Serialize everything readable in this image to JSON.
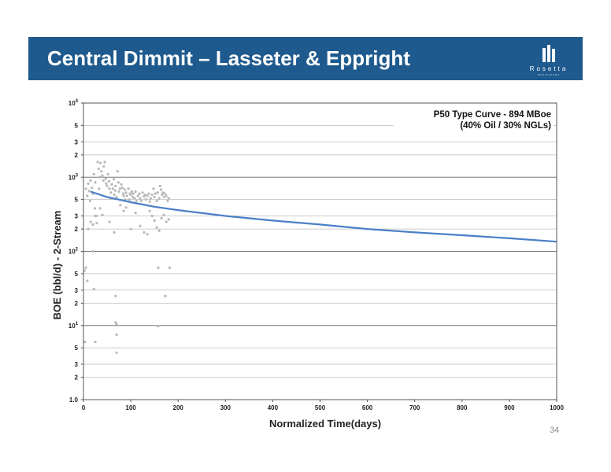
{
  "slide": {
    "title": "Central Dimmit – Lasseter & Eppright",
    "logo_text": "Rosetta",
    "logo_subtext": "RESOURCES",
    "page_number": "34",
    "colors": {
      "title_bar": "#1f5a8e",
      "curve": "#4a7fc8",
      "points": "#b8b8b8"
    }
  },
  "chart_data": {
    "type": "scatter",
    "xlabel": "Normalized Time(days)",
    "ylabel": "BOE (bbl/d) - 2-Stream",
    "xlim": [
      0,
      1000
    ],
    "ylim": [
      1,
      10000
    ],
    "yscale": "log",
    "grid": true,
    "x_ticks": [
      "0",
      "100",
      "200",
      "300",
      "400",
      "500",
      "600",
      "700",
      "800",
      "900",
      "1000"
    ],
    "y_ticks": [
      {
        "value": 10000,
        "base": "10",
        "exp": "4"
      },
      {
        "value": 5000,
        "label": "5"
      },
      {
        "value": 3000,
        "label": "3"
      },
      {
        "value": 2000,
        "label": "2"
      },
      {
        "value": 1000,
        "base": "10",
        "exp": "3"
      },
      {
        "value": 500,
        "label": "5"
      },
      {
        "value": 300,
        "label": "3"
      },
      {
        "value": 200,
        "label": "2"
      },
      {
        "value": 100,
        "base": "10",
        "exp": "2"
      },
      {
        "value": 50,
        "label": "5"
      },
      {
        "value": 30,
        "label": "3"
      },
      {
        "value": 20,
        "label": "2"
      },
      {
        "value": 10,
        "base": "10",
        "exp": "1"
      },
      {
        "value": 5,
        "label": "5"
      },
      {
        "value": 3,
        "label": "3"
      },
      {
        "value": 2,
        "label": "2"
      },
      {
        "value": 1,
        "label": "1.0"
      }
    ],
    "annotation": [
      "P50 Type Curve - 894 MBoe",
      "(40% Oil / 30% NGLs)"
    ],
    "series": [
      {
        "kind": "line",
        "x": [
          15,
          50,
          100,
          150,
          200,
          300,
          400,
          500,
          600,
          700,
          800,
          900,
          1000
        ],
        "y": [
          640,
          540,
          460,
          400,
          360,
          300,
          260,
          230,
          200,
          180,
          165,
          150,
          135
        ]
      },
      {
        "kind": "scatter",
        "points": [
          [
            5,
            700
          ],
          [
            8,
            560
          ],
          [
            10,
            820
          ],
          [
            12,
            650
          ],
          [
            14,
            480
          ],
          [
            15,
            900
          ],
          [
            18,
            720
          ],
          [
            20,
            600
          ],
          [
            22,
            1100
          ],
          [
            24,
            380
          ],
          [
            25,
            850
          ],
          [
            27,
            300
          ],
          [
            28,
            240
          ],
          [
            30,
            1600
          ],
          [
            32,
            1300
          ],
          [
            33,
            700
          ],
          [
            35,
            1000
          ],
          [
            36,
            1550
          ],
          [
            38,
            1200
          ],
          [
            40,
            1050
          ],
          [
            42,
            900
          ],
          [
            43,
            1400
          ],
          [
            45,
            1600
          ],
          [
            47,
            950
          ],
          [
            48,
            820
          ],
          [
            50,
            760
          ],
          [
            52,
            1100
          ],
          [
            54,
            880
          ],
          [
            55,
            700
          ],
          [
            57,
            520
          ],
          [
            58,
            620
          ],
          [
            60,
            800
          ],
          [
            62,
            700
          ],
          [
            64,
            940
          ],
          [
            65,
            580
          ],
          [
            67,
            660
          ],
          [
            68,
            760
          ],
          [
            70,
            540
          ],
          [
            72,
            1200
          ],
          [
            74,
            850
          ],
          [
            75,
            640
          ],
          [
            77,
            700
          ],
          [
            78,
            420
          ],
          [
            80,
            800
          ],
          [
            82,
            720
          ],
          [
            84,
            600
          ],
          [
            85,
            560
          ],
          [
            87,
            680
          ],
          [
            88,
            500
          ],
          [
            90,
            620
          ],
          [
            92,
            560
          ],
          [
            95,
            700
          ],
          [
            97,
            500
          ],
          [
            98,
            600
          ],
          [
            100,
            580
          ],
          [
            102,
            640
          ],
          [
            104,
            540
          ],
          [
            105,
            600
          ],
          [
            108,
            520
          ],
          [
            110,
            640
          ],
          [
            112,
            480
          ],
          [
            115,
            560
          ],
          [
            118,
            600
          ],
          [
            120,
            520
          ],
          [
            122,
            480
          ],
          [
            125,
            620
          ],
          [
            128,
            550
          ],
          [
            130,
            580
          ],
          [
            132,
            500
          ],
          [
            135,
            560
          ],
          [
            138,
            600
          ],
          [
            140,
            470
          ],
          [
            142,
            520
          ],
          [
            145,
            580
          ],
          [
            148,
            700
          ],
          [
            150,
            540
          ],
          [
            152,
            600
          ],
          [
            155,
            480
          ],
          [
            157,
            620
          ],
          [
            160,
            520
          ],
          [
            162,
            760
          ],
          [
            164,
            680
          ],
          [
            166,
            580
          ],
          [
            168,
            620
          ],
          [
            170,
            540
          ],
          [
            172,
            600
          ],
          [
            175,
            560
          ],
          [
            178,
            480
          ],
          [
            180,
            520
          ],
          [
            20,
            230
          ],
          [
            25,
            300
          ],
          [
            35,
            380
          ],
          [
            40,
            310
          ],
          [
            55,
            250
          ],
          [
            65,
            180
          ],
          [
            85,
            350
          ],
          [
            90,
            390
          ],
          [
            100,
            200
          ],
          [
            110,
            330
          ],
          [
            120,
            220
          ],
          [
            128,
            180
          ],
          [
            135,
            170
          ],
          [
            140,
            350
          ],
          [
            145,
            300
          ],
          [
            150,
            260
          ],
          [
            155,
            210
          ],
          [
            160,
            190
          ],
          [
            165,
            280
          ],
          [
            170,
            310
          ],
          [
            175,
            250
          ],
          [
            180,
            270
          ],
          [
            20,
            100
          ],
          [
            15,
            250
          ],
          [
            10,
            200
          ],
          [
            22,
            31
          ],
          [
            68,
            25
          ],
          [
            158,
            60
          ],
          [
            182,
            60
          ],
          [
            173,
            25
          ],
          [
            68,
            11
          ],
          [
            70,
            10.5
          ],
          [
            70,
            7.5
          ],
          [
            158,
            9.8
          ],
          [
            5,
            60
          ],
          [
            2,
            55
          ],
          [
            8,
            40
          ],
          [
            3,
            6
          ],
          [
            25,
            6
          ],
          [
            70,
            4.3
          ]
        ]
      }
    ]
  }
}
